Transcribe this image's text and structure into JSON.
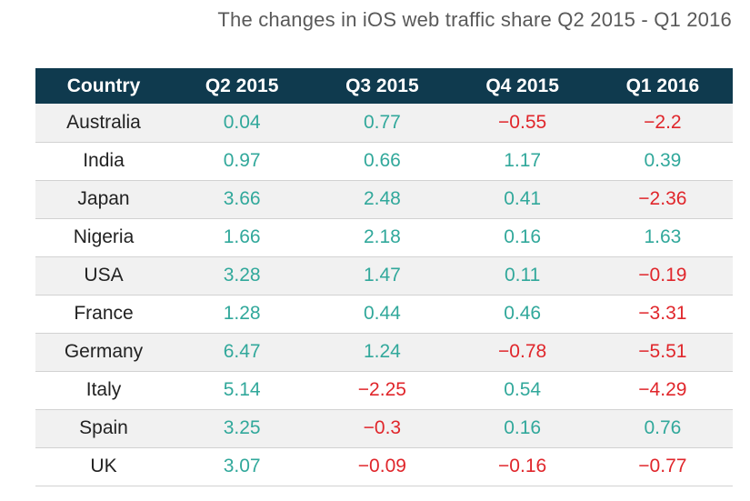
{
  "chart_data": {
    "type": "table",
    "title": "The changes in iOS web traffic share Q2 2015 - Q1 2016",
    "columns": [
      "Country",
      "Q2 2015",
      "Q3 2015",
      "Q4 2015",
      "Q1 2016"
    ],
    "rows": [
      {
        "country": "Australia",
        "values": [
          "0.04",
          "0.77",
          "-0.55",
          "-2.2"
        ]
      },
      {
        "country": "India",
        "values": [
          "0.97",
          "0.66",
          "1.17",
          "0.39"
        ]
      },
      {
        "country": "Japan",
        "values": [
          "3.66",
          "2.48",
          "0.41",
          "-2.36"
        ]
      },
      {
        "country": "Nigeria",
        "values": [
          "1.66",
          "2.18",
          "0.16",
          "1.63"
        ]
      },
      {
        "country": "USA",
        "values": [
          "3.28",
          "1.47",
          "0.11",
          "-0.19"
        ]
      },
      {
        "country": "France",
        "values": [
          "1.28",
          "0.44",
          "0.46",
          "-3.31"
        ]
      },
      {
        "country": "Germany",
        "values": [
          "6.47",
          "1.24",
          "-0.78",
          "-5.51"
        ]
      },
      {
        "country": "Italy",
        "values": [
          "5.14",
          "-2.25",
          "0.54",
          "-4.29"
        ]
      },
      {
        "country": "Spain",
        "values": [
          "3.25",
          "-0.3",
          "0.16",
          "0.76"
        ]
      },
      {
        "country": "UK",
        "values": [
          "3.07",
          "-0.09",
          "-0.16",
          "-0.77"
        ]
      }
    ],
    "colors": {
      "header_bg": "#0f3a4e",
      "header_text": "#ffffff",
      "positive": "#31a89b",
      "negative": "#e0262b",
      "stripe": "#f1f1f1"
    }
  }
}
